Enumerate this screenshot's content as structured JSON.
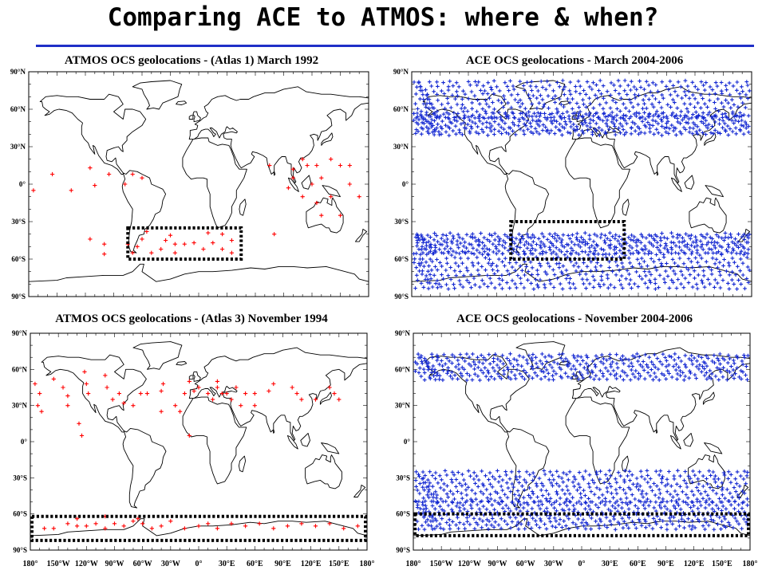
{
  "page": {
    "title": "Comparing ACE to ATMOS: where & when?",
    "colors": {
      "title_rule": "#1f2fc7",
      "atmos_marker": "#ff0000",
      "ace_marker": "#1428d2",
      "box": "#000000"
    }
  },
  "axis": {
    "lat_labels": [
      "90°N",
      "60°N",
      "30°N",
      "0°",
      "30°S",
      "60°S",
      "90°S"
    ],
    "lon_labels": [
      "180°",
      "150°W",
      "120°W",
      "90°W",
      "60°W",
      "30°W",
      "0°",
      "30°E",
      "60°E",
      "90°E",
      "120°E",
      "150°E",
      "180°"
    ]
  },
  "panels": [
    {
      "id": "atmos-march",
      "title": "ATMOS OCS geolocations - (Atlas 1) March 1992",
      "marker": "red",
      "box": {
        "lon": [
          -75,
          45
        ],
        "lat": [
          -35,
          -60
        ]
      },
      "points": [
        [
          -175,
          -5
        ],
        [
          -155,
          8
        ],
        [
          -135,
          -5
        ],
        [
          -115,
          13
        ],
        [
          -110,
          -1
        ],
        [
          -95,
          8
        ],
        [
          -78,
          0
        ],
        [
          -70,
          8
        ],
        [
          -60,
          5
        ],
        [
          -115,
          -44
        ],
        [
          -100,
          -48
        ],
        [
          -100,
          -56
        ],
        [
          -75,
          -48
        ],
        [
          -65,
          -50
        ],
        [
          -60,
          -44
        ],
        [
          -55,
          -38
        ],
        [
          -40,
          -52
        ],
        [
          -35,
          -45
        ],
        [
          -30,
          -41
        ],
        [
          -25,
          -48
        ],
        [
          -25,
          -55
        ],
        [
          -15,
          -48
        ],
        [
          -5,
          -47
        ],
        [
          5,
          -52
        ],
        [
          15,
          -47
        ],
        [
          25,
          -52
        ],
        [
          35,
          -45
        ],
        [
          35,
          -55
        ],
        [
          25,
          -40
        ],
        [
          10,
          -39
        ],
        [
          -50,
          -55
        ],
        [
          -70,
          -55
        ],
        [
          80,
          -40
        ],
        [
          75,
          15
        ],
        [
          100,
          5
        ],
        [
          110,
          20
        ],
        [
          115,
          15
        ],
        [
          125,
          15
        ],
        [
          130,
          5
        ],
        [
          140,
          20
        ],
        [
          150,
          15
        ],
        [
          110,
          -10
        ],
        [
          125,
          -15
        ],
        [
          140,
          -10
        ],
        [
          160,
          0
        ],
        [
          170,
          -10
        ],
        [
          150,
          -25
        ],
        [
          130,
          -25
        ],
        [
          95,
          -3
        ],
        [
          120,
          0
        ],
        [
          160,
          15
        ],
        [
          100,
          12
        ]
      ]
    },
    {
      "id": "ace-march",
      "title": "ACE OCS geolocations - March 2004-2006",
      "marker": "blue",
      "box": {
        "lon": [
          -75,
          45
        ],
        "lat": [
          -30,
          -60
        ]
      },
      "bands": [
        [
          82,
          54
        ],
        [
          56,
          40
        ],
        [
          -40,
          -55
        ],
        [
          -56,
          -83
        ]
      ]
    },
    {
      "id": "atmos-november",
      "title": "ATMOS OCS geolocations - (Atlas 3) November 1994",
      "marker": "red",
      "box": {
        "lon": [
          -180,
          180
        ],
        "lat": [
          -62,
          -82
        ]
      },
      "points": [
        [
          -175,
          48
        ],
        [
          -170,
          40
        ],
        [
          -172,
          30
        ],
        [
          -168,
          25
        ],
        [
          -155,
          52
        ],
        [
          -145,
          45
        ],
        [
          -140,
          38
        ],
        [
          -140,
          30
        ],
        [
          -128,
          15
        ],
        [
          -125,
          5
        ],
        [
          -122,
          58
        ],
        [
          -120,
          48
        ],
        [
          -118,
          40
        ],
        [
          -100,
          55
        ],
        [
          -98,
          45
        ],
        [
          -92,
          35
        ],
        [
          -85,
          40
        ],
        [
          -80,
          32
        ],
        [
          -70,
          30
        ],
        [
          -62,
          40
        ],
        [
          -55,
          40
        ],
        [
          -40,
          25
        ],
        [
          -40,
          42
        ],
        [
          -38,
          48
        ],
        [
          -25,
          30
        ],
        [
          -20,
          25
        ],
        [
          -15,
          40
        ],
        [
          -10,
          50
        ],
        [
          -5,
          42
        ],
        [
          -10,
          5
        ],
        [
          0,
          45
        ],
        [
          10,
          40
        ],
        [
          15,
          35
        ],
        [
          20,
          45
        ],
        [
          25,
          40
        ],
        [
          20,
          50
        ],
        [
          30,
          40
        ],
        [
          35,
          35
        ],
        [
          40,
          45
        ],
        [
          45,
          30
        ],
        [
          50,
          40
        ],
        [
          60,
          40
        ],
        [
          60,
          30
        ],
        [
          75,
          42
        ],
        [
          80,
          48
        ],
        [
          100,
          45
        ],
        [
          105,
          40
        ],
        [
          110,
          35
        ],
        [
          125,
          35
        ],
        [
          145,
          40
        ],
        [
          140,
          45
        ],
        [
          150,
          35
        ],
        [
          -165,
          -72
        ],
        [
          -155,
          -72
        ],
        [
          -140,
          -68
        ],
        [
          -130,
          -70
        ],
        [
          -120,
          -70
        ],
        [
          -110,
          -68
        ],
        [
          -100,
          -72
        ],
        [
          -90,
          -68
        ],
        [
          -80,
          -70
        ],
        [
          -70,
          -66
        ],
        [
          -60,
          -68
        ],
        [
          -50,
          -72
        ],
        [
          -40,
          -70
        ],
        [
          -30,
          -66
        ],
        [
          -15,
          -72
        ],
        [
          0,
          -70
        ],
        [
          10,
          -68
        ],
        [
          20,
          -72
        ],
        [
          35,
          -68
        ],
        [
          50,
          -70
        ],
        [
          65,
          -68
        ],
        [
          80,
          -72
        ],
        [
          95,
          -70
        ],
        [
          110,
          -68
        ],
        [
          125,
          -70
        ],
        [
          140,
          -68
        ],
        [
          155,
          -72
        ],
        [
          170,
          -70
        ],
        [
          -100,
          -62
        ],
        [
          -130,
          -64
        ],
        [
          -65,
          -64
        ]
      ]
    },
    {
      "id": "ace-november",
      "title": "ACE OCS geolocations - November 2004-2006",
      "marker": "blue",
      "box": {
        "lon": [
          -180,
          180
        ],
        "lat": [
          -60,
          -78
        ]
      },
      "bands": [
        [
          72,
          52
        ],
        [
          -25,
          -50
        ],
        [
          -50,
          -72
        ]
      ]
    }
  ]
}
